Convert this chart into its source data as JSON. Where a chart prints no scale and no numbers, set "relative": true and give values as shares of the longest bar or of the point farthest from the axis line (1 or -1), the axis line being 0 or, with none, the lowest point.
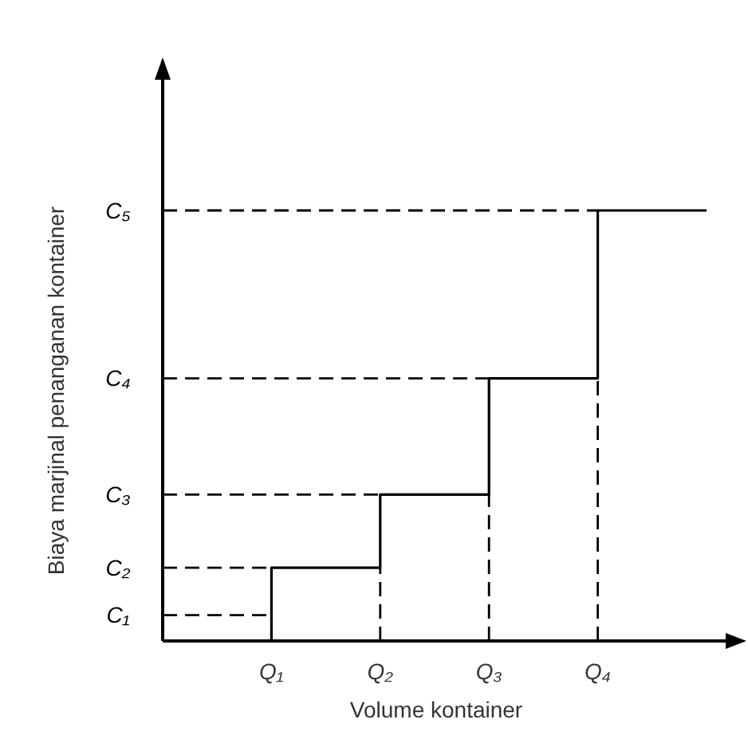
{
  "chart_data": {
    "type": "step",
    "relative": true,
    "xlabel": "Volume kontainer",
    "ylabel": "Biaya marjinal penanganan kontainer",
    "categories": [
      null,
      "Q₁",
      "Q₂",
      "Q₃",
      "Q₄",
      null
    ],
    "marker": "none",
    "series": [
      {
        "color": "#000000",
        "line_style": "solid",
        "values": [
          0,
          0.17,
          0.34,
          0.61,
          1,
          1
        ]
      },
      {
        "type": "line",
        "name": "C₁",
        "color": "#000000",
        "line_style": "dashed",
        "values": [
          0.06,
          0.06,
          null,
          null,
          null,
          null
        ]
      },
      {
        "type": "line",
        "name": "C₂",
        "color": "#000000",
        "line_style": "dashed",
        "values": [
          0.17,
          0.17,
          null,
          null,
          null,
          null
        ]
      },
      {
        "type": "line",
        "name": "C₃",
        "color": "#000000",
        "line_style": "dashed",
        "values": [
          0.34,
          0.34,
          0.34,
          null,
          null,
          null
        ]
      },
      {
        "type": "line",
        "name": "C₄",
        "color": "#000000",
        "line_style": "dashed",
        "values": [
          0.61,
          0.61,
          0.61,
          0.61,
          null,
          null
        ]
      },
      {
        "type": "line",
        "name": "C₅",
        "color": "#000000",
        "line_style": "dashed",
        "values": [
          1,
          1,
          1,
          1,
          1,
          null
        ]
      },
      {
        "type": "line",
        "color": "#000000",
        "line_style": "dashed",
        "x": [
          "Q₂",
          "Q₂"
        ],
        "values": [
          0,
          0.17
        ]
      },
      {
        "type": "line",
        "color": "#000000",
        "line_style": "dashed",
        "x": [
          "Q₃",
          "Q₃"
        ],
        "values": [
          0,
          0.34
        ]
      },
      {
        "type": "line",
        "color": "#000000",
        "line_style": "dashed",
        "x": [
          "Q₄",
          "Q₄"
        ],
        "values": [
          0,
          0.61
        ]
      }
    ]
  }
}
